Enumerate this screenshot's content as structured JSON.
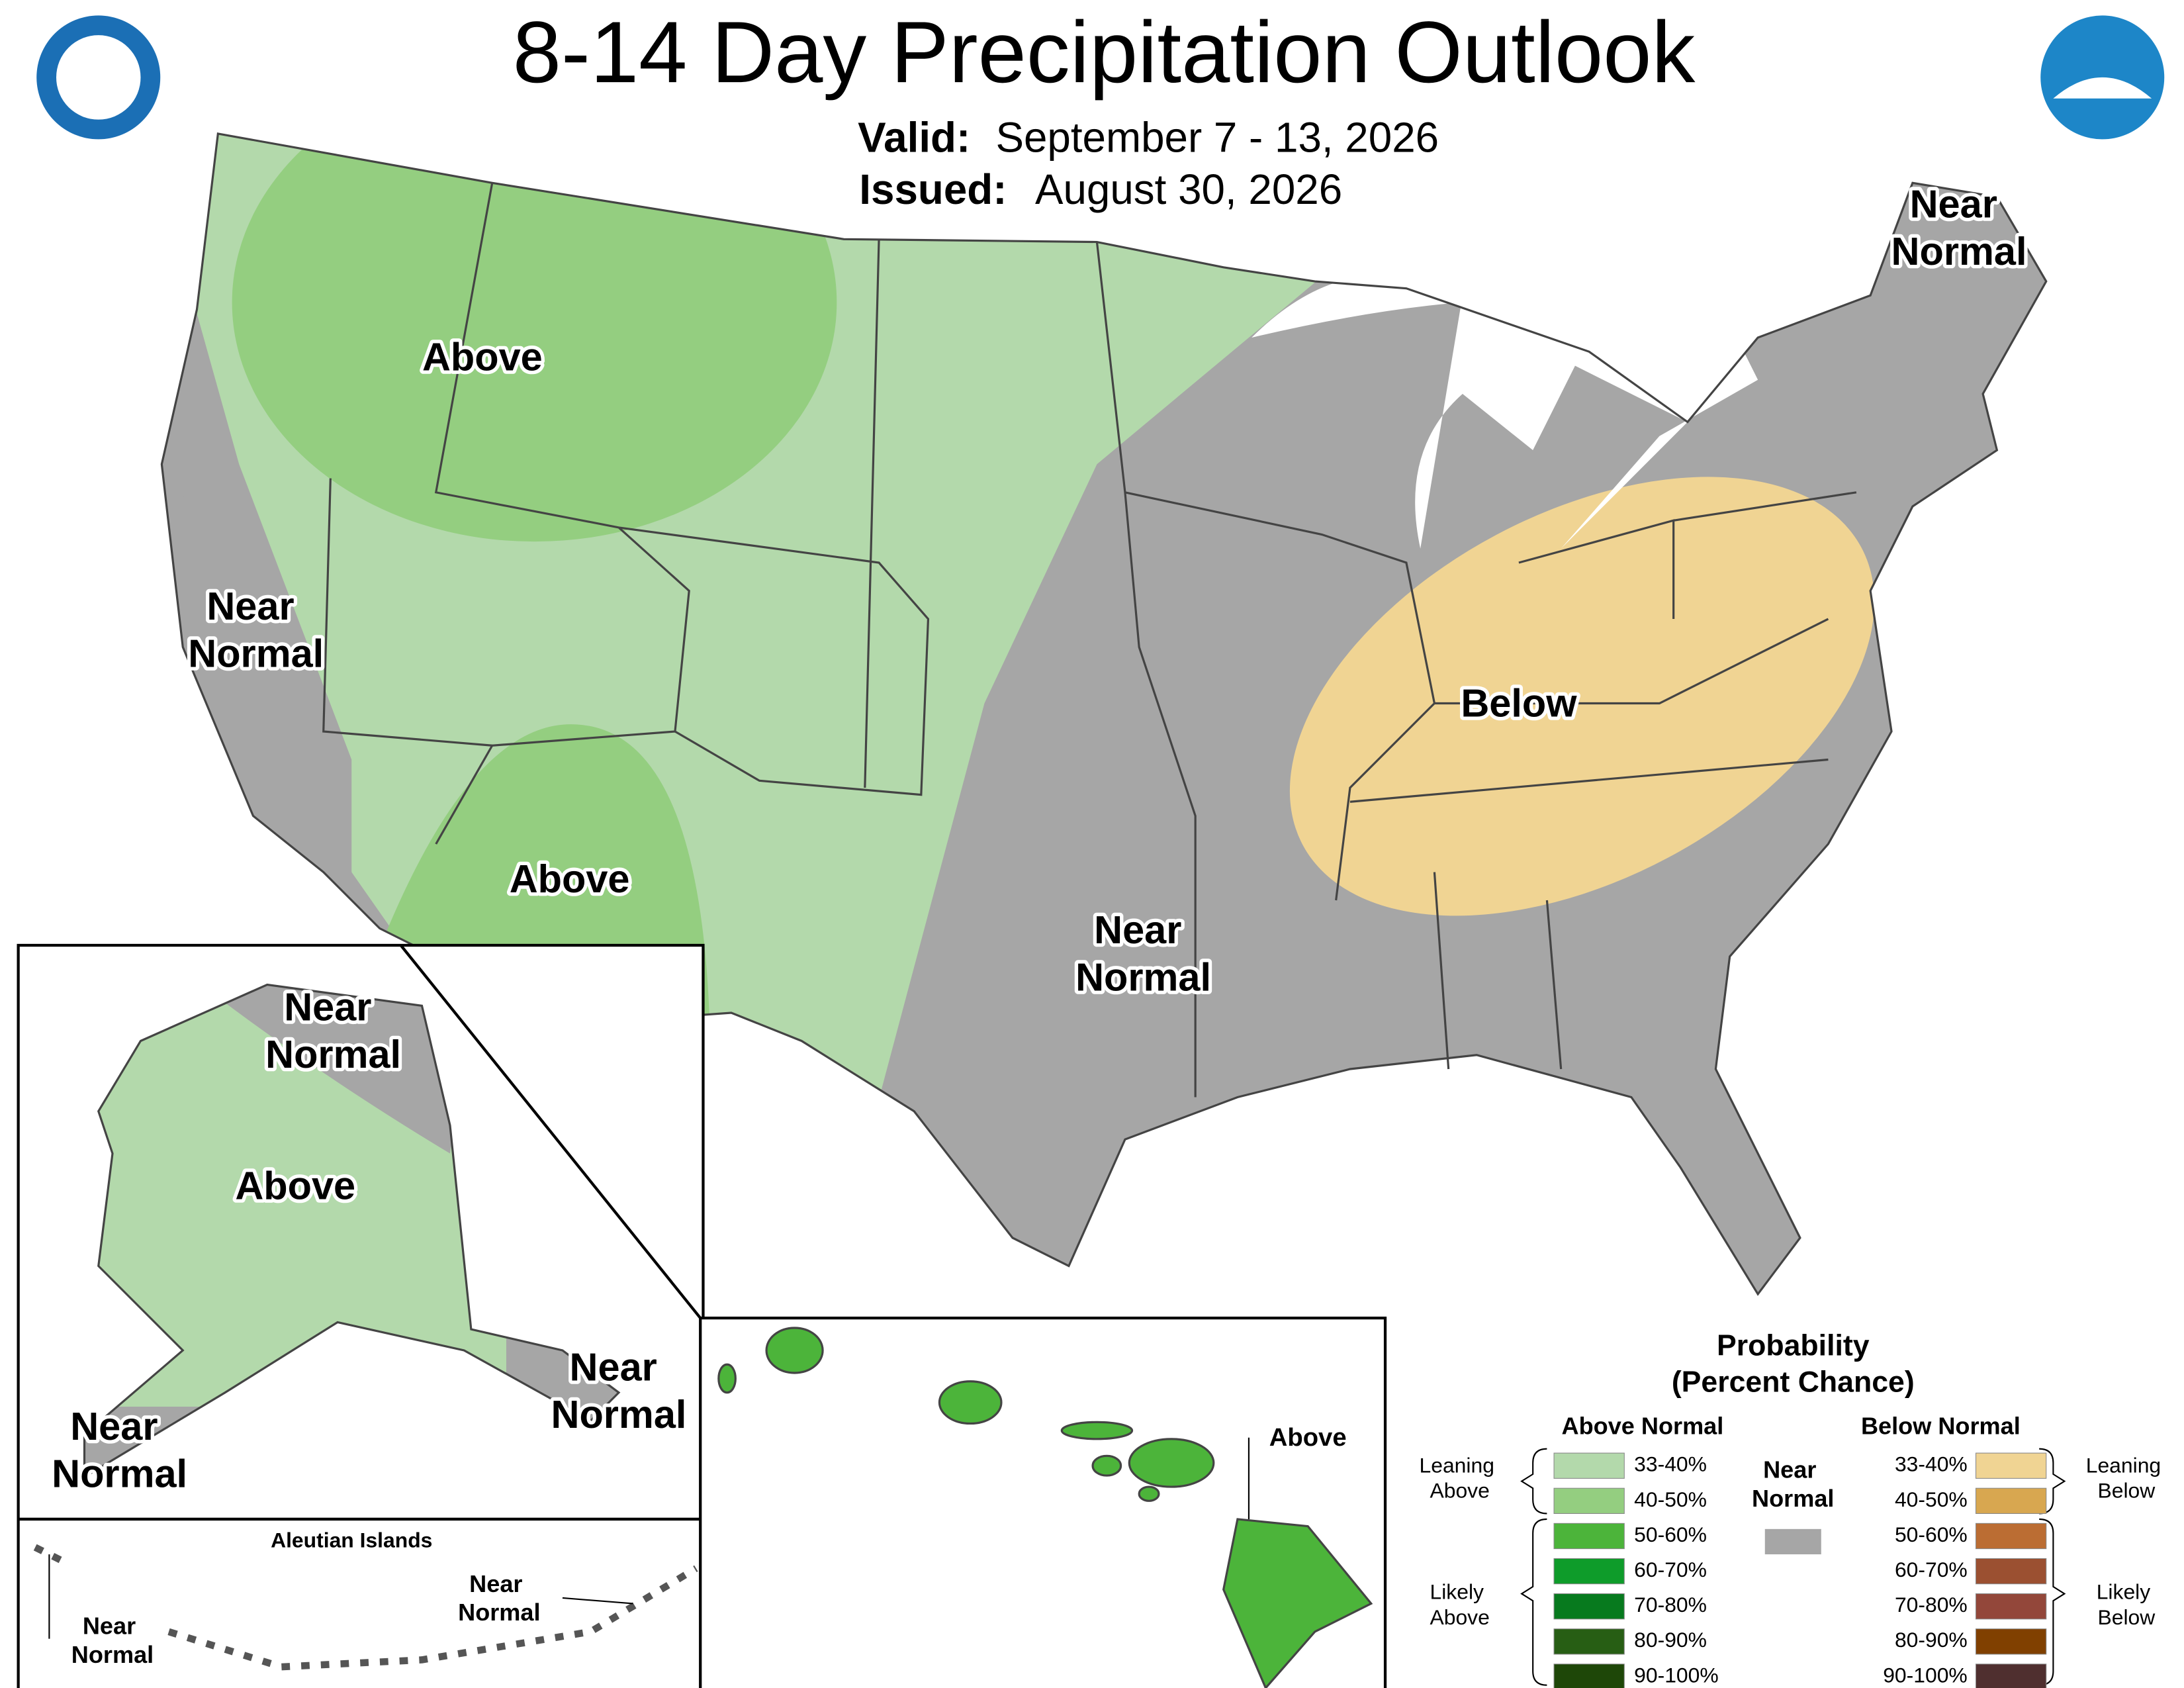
{
  "header": {
    "title": "8-14 Day Precipitation Outlook",
    "valid_label": "Valid:",
    "valid_value": "September 7 - 13, 2026",
    "issued_label": "Issued:",
    "issued_value": "August 30, 2026"
  },
  "map_labels": [
    "Above",
    "Near Normal",
    "Above",
    "Near Normal",
    "Below",
    "Near Normal"
  ],
  "alaska_labels": [
    "Near Normal",
    "Above",
    "Near Normal",
    "Near Normal"
  ],
  "aleutian": {
    "title": "Aleutian Islands",
    "labels": [
      "Near Normal",
      "Near Normal"
    ]
  },
  "hawaii_label": "Above",
  "legend": {
    "title": "Probability",
    "subtitle": "(Percent Chance)",
    "above_heading": "Above Normal",
    "below_heading": "Below Normal",
    "near_label": "Near Normal",
    "near_color": "#a6a6a6",
    "above": [
      {
        "label": "33-40%",
        "color": "#b3d9ab"
      },
      {
        "label": "40-50%",
        "color": "#94ce80"
      },
      {
        "label": "50-60%",
        "color": "#4cb43a"
      },
      {
        "label": "60-70%",
        "color": "#0e9c2a"
      },
      {
        "label": "70-80%",
        "color": "#077a1e"
      },
      {
        "label": "80-90%",
        "color": "#275e14"
      },
      {
        "label": "90-100%",
        "color": "#1e4708"
      }
    ],
    "below": [
      {
        "label": "33-40%",
        "color": "#f0d493"
      },
      {
        "label": "40-50%",
        "color": "#d8a750"
      },
      {
        "label": "50-60%",
        "color": "#bb6d33"
      },
      {
        "label": "60-70%",
        "color": "#9b5031"
      },
      {
        "label": "70-80%",
        "color": "#93473a"
      },
      {
        "label": "80-90%",
        "color": "#804000"
      },
      {
        "label": "90-100%",
        "color": "#4f2f2f"
      }
    ],
    "leaning_above": "Leaning Above",
    "likely_above": "Likely Above",
    "leaning_below": "Leaning Below",
    "likely_below": "Likely Below"
  }
}
